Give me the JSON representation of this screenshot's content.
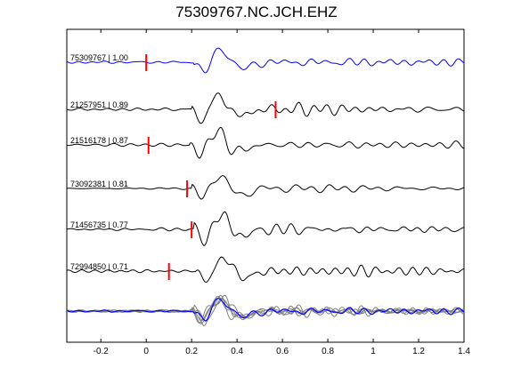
{
  "chart_data": {
    "type": "line",
    "title": "75309767.NC.JCH.EHZ",
    "xlabel": "",
    "ylabel": "",
    "xlim": [
      -0.35,
      1.4
    ],
    "xticks": [
      -0.2,
      0,
      0.2,
      0.4,
      0.6,
      0.8,
      1,
      1.2,
      1.4
    ],
    "xtick_labels": [
      "-0.2",
      "0",
      "0.2",
      "0.4",
      "0.6",
      "0.8",
      "1",
      "1.2",
      "1.4"
    ],
    "grid": false,
    "colors": {
      "reference": "#0000ff",
      "trace": "#000000",
      "stack": "#808080",
      "pick": "#ff0000"
    },
    "series": [
      {
        "name": "75309767 | 1.00",
        "pick_time": 0.0,
        "color": "#0000ff"
      },
      {
        "name": "21257951 | 0.89",
        "pick_time": 0.57,
        "color": "#000000"
      },
      {
        "name": "21516178 | 0.87",
        "pick_time": 0.01,
        "color": "#000000"
      },
      {
        "name": "73092381 | 0.81",
        "pick_time": 0.18,
        "color": "#000000"
      },
      {
        "name": "71456735 | 0.77",
        "pick_time": 0.2,
        "color": "#000000"
      },
      {
        "name": "72994850 | 0.71",
        "pick_time": 0.1,
        "color": "#000000"
      }
    ],
    "stacked_overlay": true
  }
}
